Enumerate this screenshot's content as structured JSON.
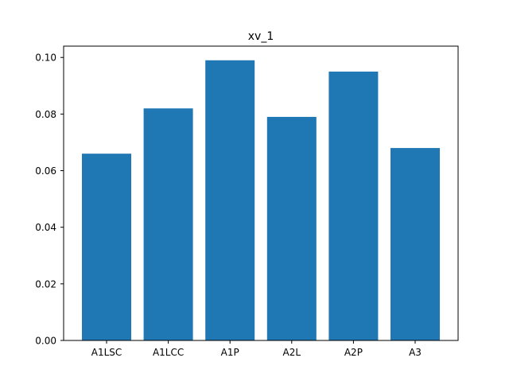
{
  "chart_data": {
    "type": "bar",
    "title": "xv_1",
    "xlabel": "",
    "ylabel": "",
    "categories": [
      "A1LSC",
      "A1LCC",
      "A1P",
      "A2L",
      "A2P",
      "A3"
    ],
    "values": [
      0.066,
      0.082,
      0.099,
      0.079,
      0.095,
      0.068
    ],
    "ylim": [
      0,
      0.104
    ],
    "yticks": [
      "0.00",
      "0.02",
      "0.04",
      "0.06",
      "0.08",
      "0.10"
    ],
    "grid": false,
    "bar_color": "#1f77b4"
  }
}
